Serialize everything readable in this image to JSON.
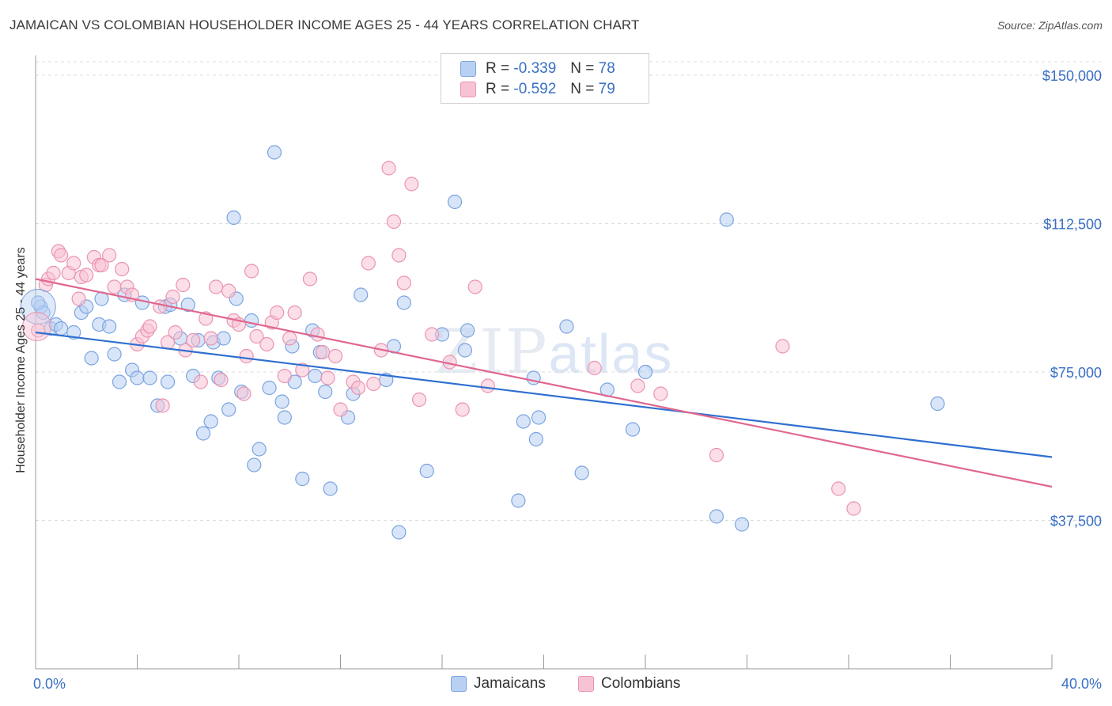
{
  "title": "JAMAICAN VS COLOMBIAN HOUSEHOLDER INCOME AGES 25 - 44 YEARS CORRELATION CHART",
  "source": "Source: ZipAtlas.com",
  "watermark": {
    "zip": "ZIP",
    "atlas": "atlas"
  },
  "legend": {
    "jamaicans": {
      "r_label": "R =",
      "r_value": "-0.339",
      "n_label": "N =",
      "n_value": "78"
    },
    "colombians": {
      "r_label": "R =",
      "r_value": "-0.592",
      "n_label": "N =",
      "n_value": "79"
    }
  },
  "bottom_legend": {
    "jamaicans": "Jamaicans",
    "colombians": "Colombians"
  },
  "colors": {
    "jamaicans_fill": "#b8d0f2",
    "jamaicans_stroke": "#7aa3e0",
    "jamaicans_line": "#2f6fd0",
    "colombians_fill": "#f7c3d4",
    "colombians_stroke": "#ea93b1",
    "colombians_line": "#e0678f",
    "axis_label": "#3a6fc4",
    "grid": "#dddddd"
  },
  "chart_data": {
    "type": "scatter",
    "title": "JAMAICAN VS COLOMBIAN HOUSEHOLDER INCOME AGES 25 - 44 YEARS CORRELATION CHART",
    "xlabel": "",
    "ylabel": "Householder Income Ages 25 - 44 years",
    "xlim": [
      0,
      40
    ],
    "ylim": [
      0,
      155000
    ],
    "x_tick_labels": [
      "0.0%",
      "40.0%"
    ],
    "y_ticks": [
      37500,
      75000,
      112500,
      150000
    ],
    "y_tick_labels": [
      "$37,500",
      "$75,000",
      "$112,500",
      "$150,000"
    ],
    "grid": true,
    "legend_placement": "top-center",
    "series": [
      {
        "name": "Jamaicans",
        "trend": {
          "x": [
            0,
            40
          ],
          "y": [
            85000,
            53500
          ]
        },
        "points": [
          [
            0.2,
            91500
          ],
          [
            0.3,
            90000
          ],
          [
            0.6,
            86000
          ],
          [
            0.8,
            87000
          ],
          [
            1.0,
            86000
          ],
          [
            1.5,
            85000
          ],
          [
            1.8,
            90000
          ],
          [
            2.0,
            91500
          ],
          [
            2.2,
            78500
          ],
          [
            2.5,
            87000
          ],
          [
            2.6,
            93500
          ],
          [
            2.9,
            86500
          ],
          [
            3.1,
            79500
          ],
          [
            3.3,
            72500
          ],
          [
            3.5,
            94500
          ],
          [
            3.8,
            75500
          ],
          [
            4.0,
            73500
          ],
          [
            4.2,
            92500
          ],
          [
            4.5,
            73500
          ],
          [
            4.8,
            66500
          ],
          [
            5.1,
            91500
          ],
          [
            5.2,
            72500
          ],
          [
            5.3,
            92000
          ],
          [
            5.7,
            83500
          ],
          [
            6.0,
            92000
          ],
          [
            6.2,
            74000
          ],
          [
            6.4,
            83000
          ],
          [
            6.6,
            59500
          ],
          [
            6.9,
            62500
          ],
          [
            7.0,
            82500
          ],
          [
            7.2,
            73500
          ],
          [
            7.4,
            83500
          ],
          [
            7.6,
            65500
          ],
          [
            7.8,
            114000
          ],
          [
            7.9,
            93500
          ],
          [
            8.1,
            70000
          ],
          [
            8.5,
            88000
          ],
          [
            8.6,
            51500
          ],
          [
            8.8,
            55500
          ],
          [
            9.2,
            71000
          ],
          [
            9.4,
            130500
          ],
          [
            9.7,
            67500
          ],
          [
            9.8,
            63500
          ],
          [
            10.1,
            81500
          ],
          [
            10.2,
            72500
          ],
          [
            10.5,
            48000
          ],
          [
            10.9,
            85500
          ],
          [
            11.0,
            74000
          ],
          [
            11.2,
            80000
          ],
          [
            11.4,
            70000
          ],
          [
            11.6,
            45500
          ],
          [
            12.3,
            63500
          ],
          [
            12.5,
            69500
          ],
          [
            12.8,
            94500
          ],
          [
            13.8,
            73000
          ],
          [
            14.1,
            81500
          ],
          [
            14.3,
            34500
          ],
          [
            14.5,
            92500
          ],
          [
            15.4,
            50000
          ],
          [
            16.0,
            84500
          ],
          [
            16.5,
            118000
          ],
          [
            16.9,
            80500
          ],
          [
            17.0,
            85500
          ],
          [
            19.0,
            42500
          ],
          [
            19.2,
            62500
          ],
          [
            19.6,
            73500
          ],
          [
            19.7,
            58000
          ],
          [
            19.8,
            63500
          ],
          [
            20.9,
            86500
          ],
          [
            21.5,
            49500
          ],
          [
            22.5,
            70500
          ],
          [
            23.5,
            60500
          ],
          [
            24.0,
            75000
          ],
          [
            26.8,
            38500
          ],
          [
            27.2,
            113500
          ],
          [
            27.8,
            36500
          ],
          [
            35.5,
            67000
          ],
          [
            0.1,
            92500
          ]
        ]
      },
      {
        "name": "Colombians",
        "trend": {
          "x": [
            0,
            40
          ],
          "y": [
            98500,
            46000
          ]
        },
        "points": [
          [
            0.1,
            85500
          ],
          [
            0.4,
            97000
          ],
          [
            0.5,
            98500
          ],
          [
            0.7,
            100000
          ],
          [
            0.9,
            105500
          ],
          [
            1.0,
            104500
          ],
          [
            1.3,
            100000
          ],
          [
            1.5,
            102500
          ],
          [
            1.7,
            93500
          ],
          [
            1.8,
            99000
          ],
          [
            2.0,
            99500
          ],
          [
            2.3,
            104000
          ],
          [
            2.5,
            102000
          ],
          [
            2.6,
            102000
          ],
          [
            2.9,
            104500
          ],
          [
            3.1,
            96500
          ],
          [
            3.4,
            101000
          ],
          [
            3.6,
            96500
          ],
          [
            3.8,
            94500
          ],
          [
            4.0,
            82000
          ],
          [
            4.2,
            84000
          ],
          [
            4.4,
            85500
          ],
          [
            4.5,
            86500
          ],
          [
            4.9,
            91500
          ],
          [
            5.0,
            66500
          ],
          [
            5.2,
            82500
          ],
          [
            5.4,
            94000
          ],
          [
            5.5,
            85000
          ],
          [
            5.8,
            97000
          ],
          [
            5.9,
            80500
          ],
          [
            6.2,
            83000
          ],
          [
            6.5,
            72500
          ],
          [
            6.7,
            88500
          ],
          [
            6.9,
            83500
          ],
          [
            7.1,
            96500
          ],
          [
            7.3,
            73000
          ],
          [
            7.6,
            95500
          ],
          [
            7.8,
            88000
          ],
          [
            8.0,
            87000
          ],
          [
            8.2,
            69500
          ],
          [
            8.3,
            79000
          ],
          [
            8.5,
            100500
          ],
          [
            8.7,
            84000
          ],
          [
            9.1,
            82000
          ],
          [
            9.3,
            87500
          ],
          [
            9.5,
            90000
          ],
          [
            9.8,
            74000
          ],
          [
            10.0,
            83500
          ],
          [
            10.2,
            90000
          ],
          [
            10.5,
            75500
          ],
          [
            10.8,
            98500
          ],
          [
            11.1,
            84500
          ],
          [
            11.3,
            80000
          ],
          [
            11.5,
            73500
          ],
          [
            11.8,
            79000
          ],
          [
            12.0,
            65500
          ],
          [
            12.5,
            72500
          ],
          [
            12.7,
            71000
          ],
          [
            13.1,
            102500
          ],
          [
            13.3,
            72000
          ],
          [
            13.6,
            80500
          ],
          [
            13.9,
            126500
          ],
          [
            14.1,
            113000
          ],
          [
            14.3,
            104500
          ],
          [
            14.5,
            97500
          ],
          [
            14.8,
            122500
          ],
          [
            15.1,
            68000
          ],
          [
            15.6,
            84500
          ],
          [
            16.3,
            77500
          ],
          [
            16.8,
            65500
          ],
          [
            17.3,
            96500
          ],
          [
            17.8,
            71500
          ],
          [
            22.0,
            76000
          ],
          [
            23.7,
            71500
          ],
          [
            24.6,
            69500
          ],
          [
            26.8,
            54000
          ],
          [
            29.4,
            81500
          ],
          [
            31.6,
            45500
          ],
          [
            32.2,
            40500
          ]
        ]
      }
    ]
  }
}
